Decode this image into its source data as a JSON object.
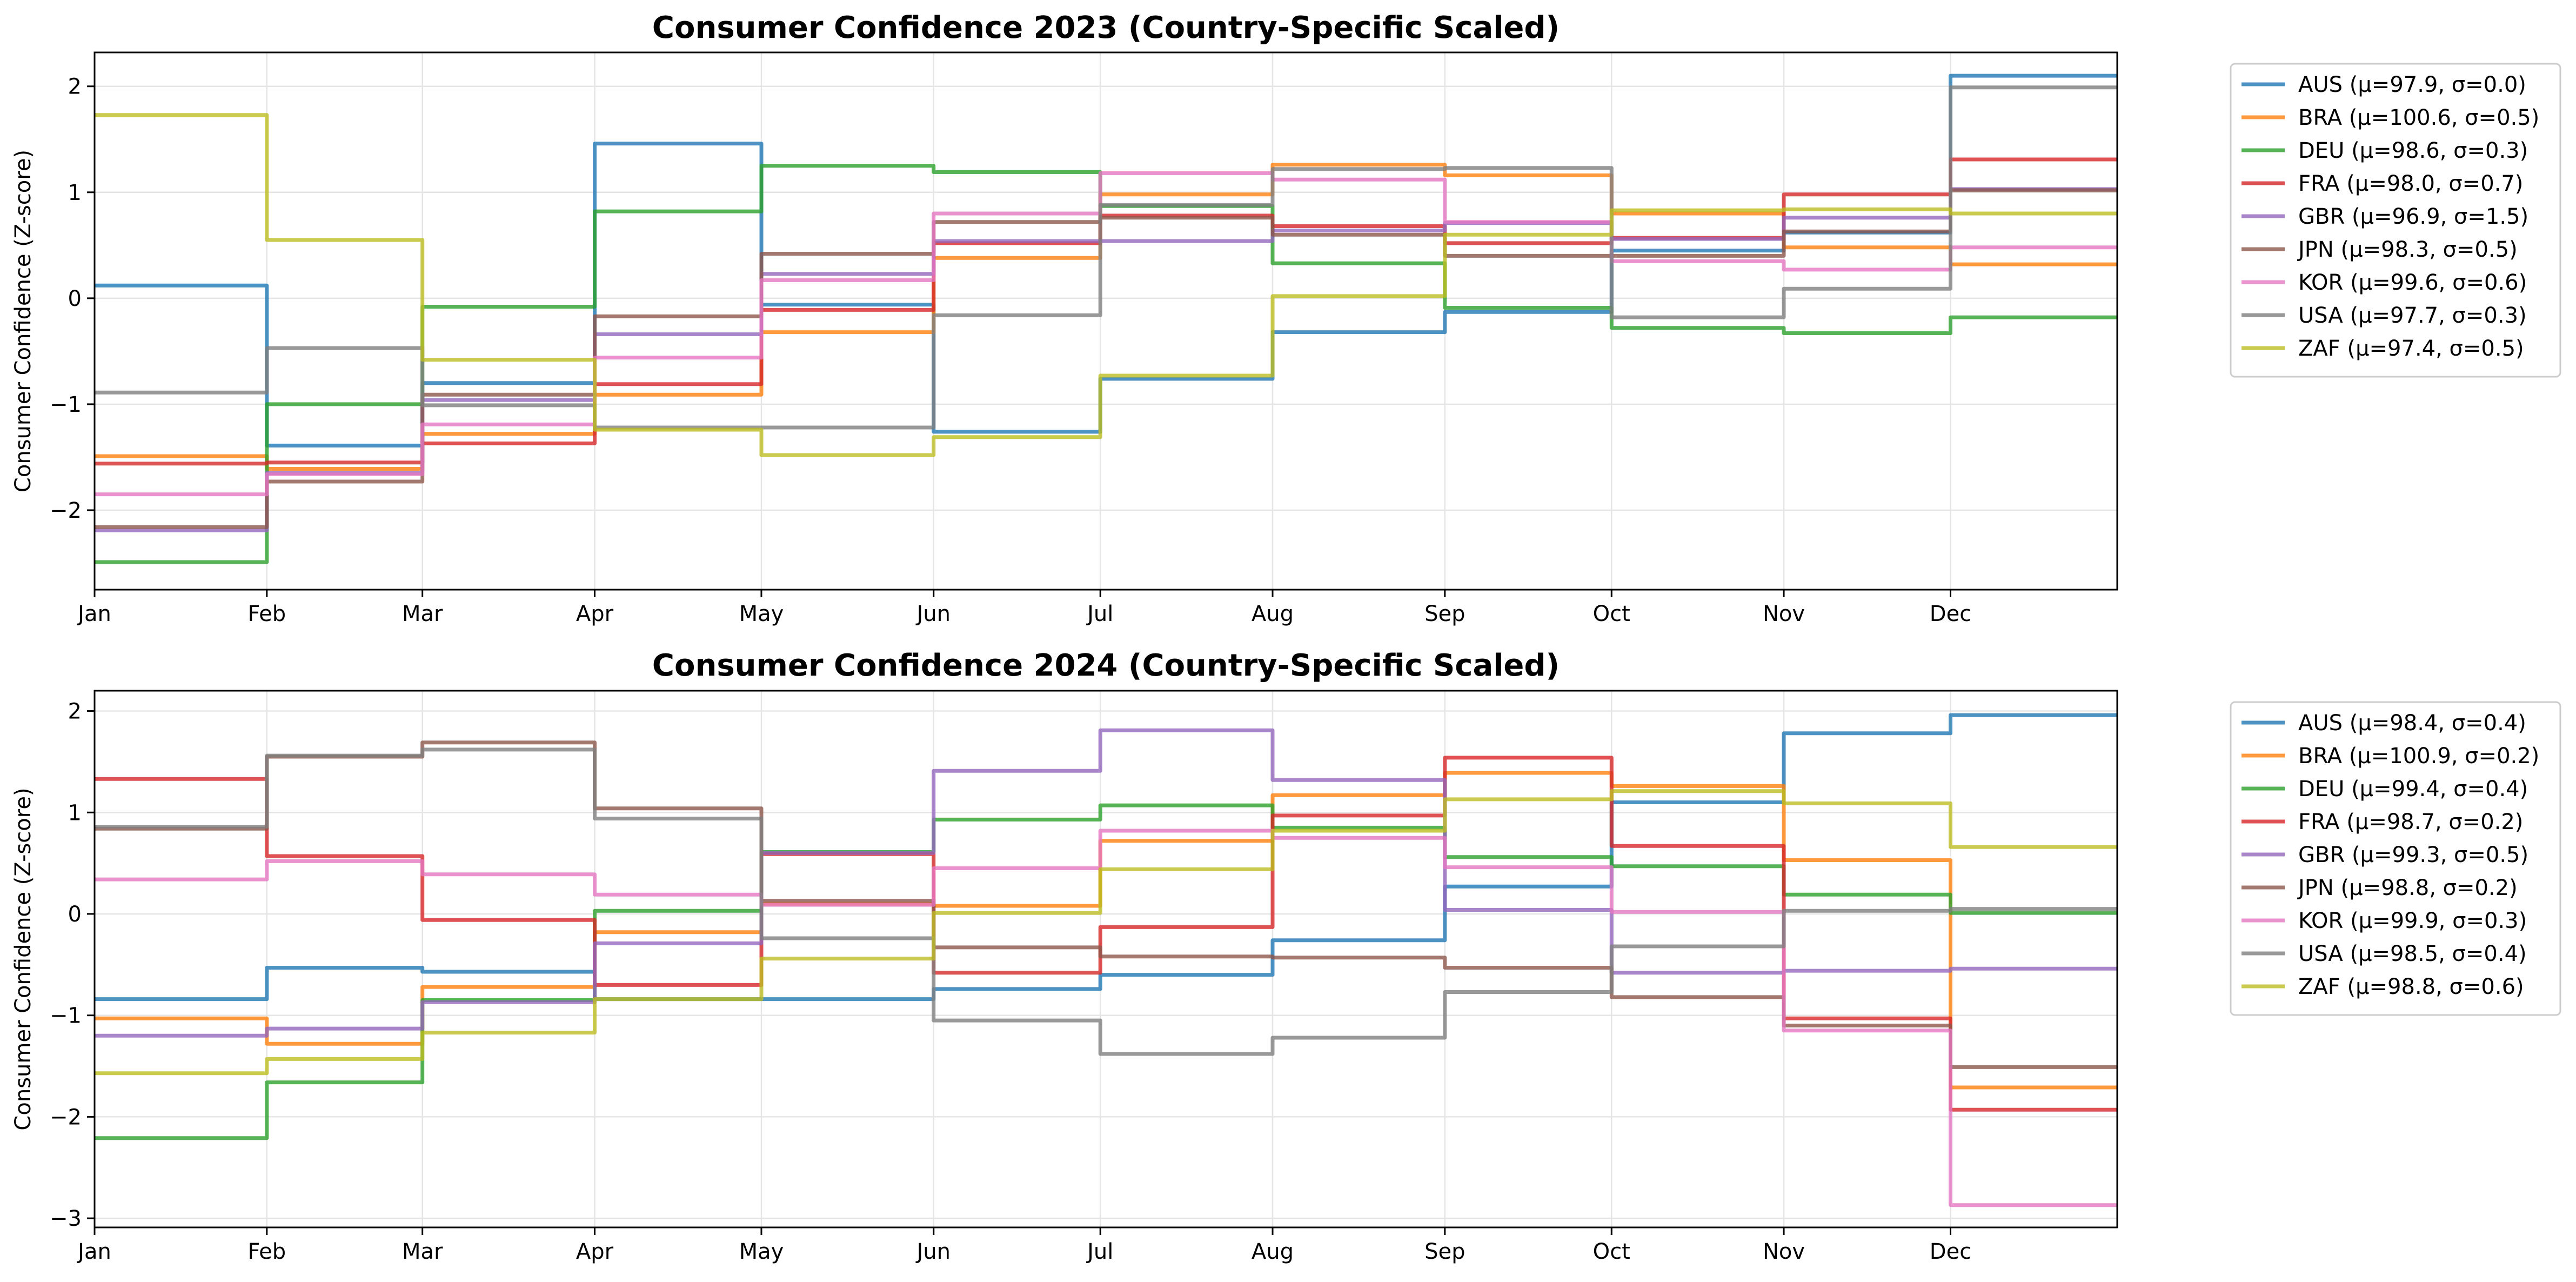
{
  "chart_data": [
    {
      "type": "line",
      "title": "Consumer Confidence 2023 (Country-Specific Scaled)",
      "xlabel": "",
      "ylabel": "Consumer Confidence (Z-score)",
      "x_ticks": [
        "Jan",
        "Feb",
        "Mar",
        "Apr",
        "May",
        "Jun",
        "Jul",
        "Aug",
        "Sep",
        "Oct",
        "Nov",
        "Dec"
      ],
      "y_ticks": [
        "−2",
        "−1",
        "0",
        "1",
        "2"
      ],
      "ylim": [
        -2.75,
        2.32
      ],
      "grid": true,
      "legend_position": "outside-right-top",
      "series": [
        {
          "name": "AUS (μ=97.9, σ=0.0)",
          "color": "#1f77b4",
          "values": [
            0.12,
            -1.39,
            -0.8,
            1.46,
            -0.06,
            -1.26,
            -0.76,
            -0.32,
            -0.13,
            0.45,
            0.62,
            2.1
          ]
        },
        {
          "name": "BRA (μ=100.6, σ=0.5)",
          "color": "#ff7f0e",
          "values": [
            -1.49,
            -1.61,
            -1.28,
            -0.91,
            -0.32,
            0.38,
            0.98,
            1.26,
            1.16,
            0.8,
            0.48,
            0.32
          ]
        },
        {
          "name": "DEU (μ=98.6, σ=0.3)",
          "color": "#2ca02c",
          "values": [
            -2.49,
            -1.0,
            -0.08,
            0.82,
            1.25,
            1.19,
            0.87,
            0.33,
            -0.09,
            -0.28,
            -0.33,
            -0.18
          ]
        },
        {
          "name": "FRA (μ=98.0, σ=0.7)",
          "color": "#d62728",
          "values": [
            -1.56,
            -1.55,
            -1.37,
            -0.81,
            -0.11,
            0.52,
            0.78,
            0.68,
            0.52,
            0.57,
            0.98,
            1.31
          ]
        },
        {
          "name": "GBR (μ=96.9, σ=1.5)",
          "color": "#9467bd",
          "values": [
            -2.19,
            -1.65,
            -0.96,
            -0.34,
            0.23,
            0.54,
            0.54,
            0.64,
            0.71,
            0.56,
            0.76,
            1.03
          ]
        },
        {
          "name": "JPN (μ=98.3, σ=0.5)",
          "color": "#8c564b",
          "values": [
            -2.16,
            -1.73,
            -0.91,
            -0.17,
            0.42,
            0.72,
            0.76,
            0.6,
            0.4,
            0.4,
            0.63,
            1.02
          ]
        },
        {
          "name": "KOR (μ=99.6, σ=0.6)",
          "color": "#e377c2",
          "values": [
            -1.85,
            -1.66,
            -1.19,
            -0.56,
            0.17,
            0.8,
            1.18,
            1.12,
            0.72,
            0.35,
            0.27,
            0.48
          ]
        },
        {
          "name": "USA (μ=97.7, σ=0.3)",
          "color": "#7f7f7f",
          "values": [
            -0.89,
            -0.47,
            -1.01,
            -1.22,
            -1.22,
            -0.16,
            0.88,
            1.22,
            1.23,
            -0.18,
            0.09,
            1.99
          ]
        },
        {
          "name": "ZAF (μ=97.4, σ=0.5)",
          "color": "#bcbd22",
          "values": [
            1.73,
            0.55,
            -0.58,
            -1.24,
            -1.48,
            -1.31,
            -0.73,
            0.02,
            0.6,
            0.83,
            0.84,
            0.8
          ]
        }
      ]
    },
    {
      "type": "line",
      "title": "Consumer Confidence 2024 (Country-Specific Scaled)",
      "xlabel": "",
      "ylabel": "Consumer Confidence (Z-score)",
      "x_ticks": [
        "Jan",
        "Feb",
        "Mar",
        "Apr",
        "May",
        "Jun",
        "Jul",
        "Aug",
        "Sep",
        "Oct",
        "Nov",
        "Dec"
      ],
      "y_ticks": [
        "−3",
        "−2",
        "−1",
        "0",
        "1",
        "2"
      ],
      "ylim": [
        -3.09,
        2.2
      ],
      "grid": true,
      "legend_position": "outside-right-top",
      "series": [
        {
          "name": "AUS (μ=98.4, σ=0.4)",
          "color": "#1f77b4",
          "values": [
            -0.84,
            -0.53,
            -0.57,
            -0.84,
            -0.84,
            -0.74,
            -0.6,
            -0.26,
            0.27,
            1.1,
            1.78,
            1.96
          ]
        },
        {
          "name": "BRA (μ=100.9, σ=0.2)",
          "color": "#ff7f0e",
          "values": [
            -1.03,
            -1.28,
            -0.72,
            -0.18,
            0.1,
            0.08,
            0.72,
            1.17,
            1.39,
            1.26,
            0.53,
            -1.71
          ]
        },
        {
          "name": "DEU (μ=99.4, σ=0.4)",
          "color": "#2ca02c",
          "values": [
            -2.21,
            -1.66,
            -0.85,
            0.03,
            0.61,
            0.93,
            1.07,
            0.85,
            0.56,
            0.47,
            0.19,
            0.01
          ]
        },
        {
          "name": "FRA (μ=98.7, σ=0.2)",
          "color": "#d62728",
          "values": [
            1.33,
            0.57,
            -0.06,
            -0.7,
            0.59,
            -0.58,
            -0.13,
            0.97,
            1.54,
            0.67,
            -1.03,
            -1.93
          ]
        },
        {
          "name": "GBR (μ=99.3, σ=0.5)",
          "color": "#9467bd",
          "values": [
            -1.2,
            -1.13,
            -0.87,
            -0.29,
            0.6,
            1.41,
            1.81,
            1.32,
            0.04,
            -0.58,
            -0.56,
            -0.54
          ]
        },
        {
          "name": "JPN (μ=98.8, σ=0.2)",
          "color": "#8c564b",
          "values": [
            0.84,
            1.55,
            1.69,
            1.04,
            0.13,
            -0.33,
            -0.42,
            -0.43,
            -0.53,
            -0.82,
            -1.1,
            -1.51
          ]
        },
        {
          "name": "KOR (μ=99.9, σ=0.3)",
          "color": "#e377c2",
          "values": [
            0.34,
            0.52,
            0.39,
            0.19,
            0.09,
            0.45,
            0.82,
            0.75,
            0.46,
            0.02,
            -1.15,
            -2.87
          ]
        },
        {
          "name": "USA (μ=98.5, σ=0.4)",
          "color": "#7f7f7f",
          "values": [
            0.86,
            1.56,
            1.62,
            0.94,
            -0.24,
            -1.05,
            -1.38,
            -1.22,
            -0.77,
            -0.32,
            0.03,
            0.05
          ]
        },
        {
          "name": "ZAF (μ=98.8, σ=0.6)",
          "color": "#bcbd22",
          "values": [
            -1.57,
            -1.43,
            -1.17,
            -0.84,
            -0.44,
            0.01,
            0.44,
            0.82,
            1.13,
            1.21,
            1.09,
            0.66
          ]
        }
      ]
    }
  ]
}
